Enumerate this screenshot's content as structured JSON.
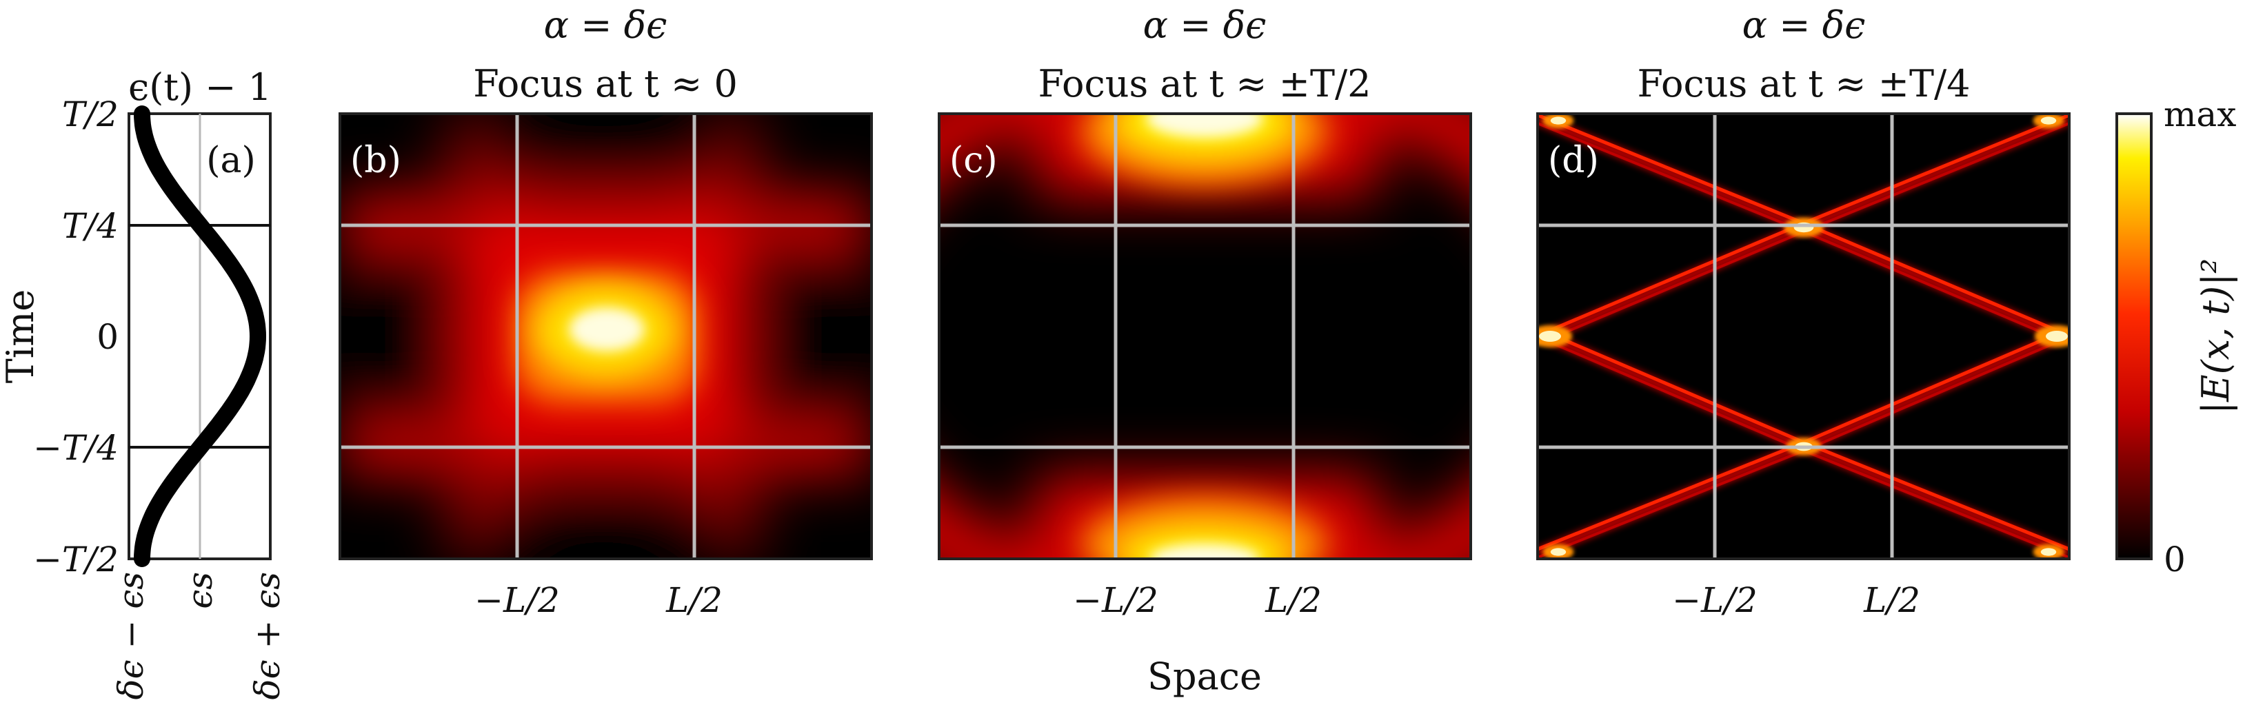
{
  "chart_data": {
    "type": "heatmap",
    "xlabel": "Space",
    "ylabel": "Time",
    "x_ticks": [
      "−L/2",
      "L/2"
    ],
    "y_ticks": [
      "T/2",
      "T/4",
      "0",
      "−T/4",
      "−T/2"
    ],
    "colorbar": {
      "label": "|E(x, t)|²",
      "ticks": [
        "max",
        "0"
      ],
      "colormap": "hot"
    },
    "profile_panel": {
      "label": "(a)",
      "title": "ϵ(t) − 1",
      "curve": "cosine",
      "x_ticks": [
        "δϵ − ϵs",
        "ϵs",
        "δϵ + ϵs"
      ],
      "y_ticks": [
        "T/2",
        "T/4",
        "0",
        "−T/4",
        "−T/2"
      ]
    },
    "panels": [
      {
        "label": "(b)",
        "title_line1": "α = δϵ",
        "title_line2": "Focus at t ≈ 0"
      },
      {
        "label": "(c)",
        "title_line1": "α = δϵ",
        "title_line2": "Focus at t ≈ ±T/2"
      },
      {
        "label": "(d)",
        "title_line1": "α = δϵ",
        "title_line2": "Focus at t ≈ ±T/4"
      }
    ]
  }
}
